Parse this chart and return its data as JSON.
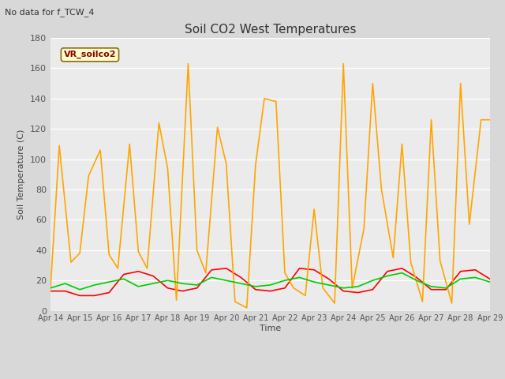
{
  "title": "Soil CO2 West Temperatures",
  "subtitle": "No data for f_TCW_4",
  "ylabel": "Soil Temperature (C)",
  "xlabel": "Time",
  "annotation": "VR_soilco2",
  "ylim": [
    0,
    180
  ],
  "yticks": [
    0,
    20,
    40,
    60,
    80,
    100,
    120,
    140,
    160,
    180
  ],
  "x_labels": [
    "Apr 14",
    "Apr 15",
    "Apr 16",
    "Apr 17",
    "Apr 18",
    "Apr 19",
    "Apr 20",
    "Apr 21",
    "Apr 22",
    "Apr 23",
    "Apr 24",
    "Apr 25",
    "Apr 26",
    "Apr 27",
    "Apr 28",
    "Apr 29"
  ],
  "TCW_1_x": [
    0,
    0.5,
    1,
    1.5,
    2,
    2.5,
    3,
    3.5,
    4,
    4.5,
    5,
    5.5,
    6,
    6.5,
    7,
    7.5,
    8,
    8.5,
    9,
    9.5,
    10,
    10.5,
    11,
    11.5,
    12,
    12.5,
    13,
    13.5,
    14,
    14.5,
    15
  ],
  "TCW_1_y": [
    13,
    13,
    10,
    10,
    12,
    24,
    26,
    23,
    15,
    13,
    15,
    27,
    28,
    22,
    14,
    13,
    15,
    28,
    27,
    21,
    13,
    12,
    14,
    26,
    28,
    22,
    14,
    14,
    26,
    27,
    21
  ],
  "TCW_2_x": [
    0,
    0.3,
    0.7,
    1,
    1.3,
    1.7,
    2,
    2.3,
    2.7,
    3,
    3.3,
    3.7,
    4,
    4.3,
    4.7,
    5,
    5.3,
    5.7,
    6,
    6.3,
    6.7,
    7,
    7.3,
    7.7,
    8,
    8.3,
    8.7,
    9,
    9.3,
    9.7,
    10,
    10.3,
    10.7,
    11,
    11.3,
    11.7,
    12,
    12.3,
    12.7,
    13,
    13.3,
    13.7,
    14,
    14.3,
    14.7,
    15
  ],
  "TCW_2_y": [
    15,
    109,
    32,
    38,
    89,
    106,
    37,
    28,
    110,
    39,
    28,
    124,
    94,
    7,
    163,
    40,
    25,
    121,
    97,
    6,
    2,
    96,
    140,
    138,
    25,
    15,
    10,
    67,
    15,
    5,
    163,
    15,
    54,
    150,
    80,
    35,
    110,
    32,
    6,
    126,
    33,
    5,
    150,
    57,
    126,
    126
  ],
  "TCW_3_x": [
    0,
    0.5,
    1,
    1.5,
    2,
    2.5,
    3,
    3.5,
    4,
    4.5,
    5,
    5.5,
    6,
    6.5,
    7,
    7.5,
    8,
    8.5,
    9,
    9.5,
    10,
    10.5,
    11,
    11.5,
    12,
    12.5,
    13,
    13.5,
    14,
    14.5,
    15
  ],
  "TCW_3_y": [
    15,
    18,
    14,
    17,
    19,
    21,
    16,
    18,
    20,
    18,
    17,
    22,
    20,
    18,
    16,
    17,
    20,
    22,
    19,
    17,
    15,
    16,
    20,
    23,
    25,
    20,
    16,
    15,
    21,
    22,
    19
  ]
}
